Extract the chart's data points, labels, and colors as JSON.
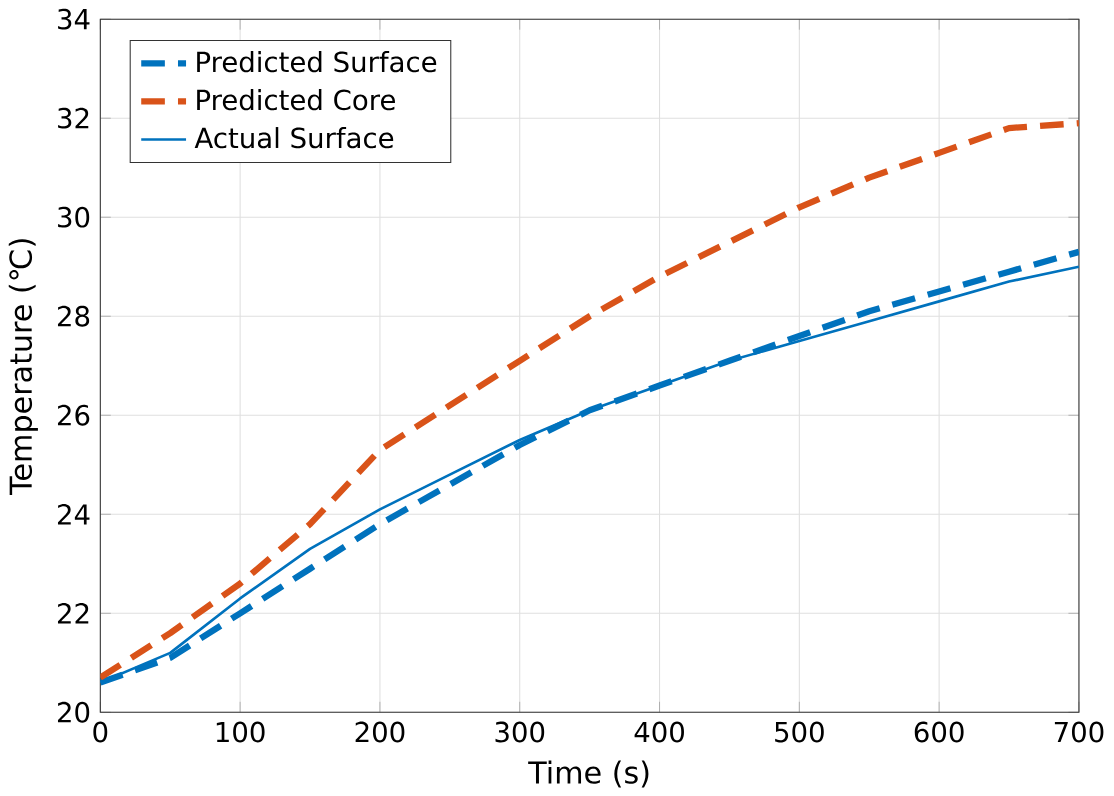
{
  "chart_data": {
    "type": "line",
    "xlabel": "Time (s)",
    "ylabel": "Temperature (℃)",
    "x": [
      0,
      50,
      100,
      150,
      200,
      250,
      300,
      350,
      400,
      450,
      500,
      550,
      600,
      650,
      700
    ],
    "series": [
      {
        "name": "Predicted Surface",
        "color": "#0072bd",
        "line_style": "dashed",
        "values": [
          20.6,
          21.1,
          22.0,
          22.9,
          23.8,
          24.6,
          25.4,
          26.1,
          26.6,
          27.1,
          27.6,
          28.1,
          28.5,
          28.9,
          29.3
        ]
      },
      {
        "name": "Predicted Core",
        "color": "#d95319",
        "line_style": "dashed",
        "values": [
          20.7,
          21.6,
          22.6,
          23.8,
          25.3,
          26.2,
          27.1,
          28.0,
          28.8,
          29.5,
          30.2,
          30.8,
          31.3,
          31.8,
          31.9
        ]
      },
      {
        "name": "Actual Surface",
        "color": "#0072bd",
        "line_style": "solid",
        "values": [
          20.6,
          21.2,
          22.3,
          23.3,
          24.1,
          24.8,
          25.5,
          26.1,
          26.6,
          27.1,
          27.5,
          27.9,
          28.3,
          28.7,
          29.0
        ]
      }
    ],
    "xlim": [
      0,
      700
    ],
    "ylim": [
      20,
      34
    ],
    "xticks": [
      0,
      100,
      200,
      300,
      400,
      500,
      600,
      700
    ],
    "yticks": [
      20,
      22,
      24,
      26,
      28,
      30,
      32,
      34
    ],
    "grid": true,
    "legend": "top left"
  }
}
